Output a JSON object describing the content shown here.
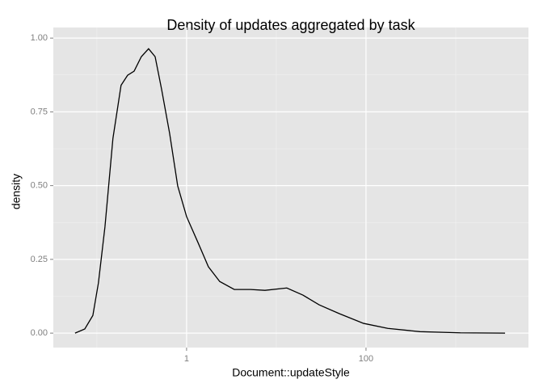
{
  "chart_data": {
    "type": "line",
    "title": "Density of updates aggregated by task",
    "x_label": "Document::updateStyle",
    "y_label": "density",
    "x_log": true,
    "grid": true,
    "x": [
      0.0571,
      0.0733,
      0.0902,
      0.104,
      0.123,
      0.151,
      0.186,
      0.22,
      0.26,
      0.313,
      0.377,
      0.446,
      0.526,
      0.647,
      0.796,
      1,
      1.34,
      1.75,
      2.34,
      3.4,
      5.15,
      7.48,
      13.1,
      19.8,
      30,
      50.4,
      94,
      175,
      400,
      1130,
      3550
    ],
    "series": [
      {
        "color": "#000000",
        "values": [
          0,
          0.014,
          0.06,
          0.17,
          0.36,
          0.66,
          0.84,
          0.874,
          0.888,
          0.937,
          0.964,
          0.937,
          0.827,
          0.677,
          0.499,
          0.395,
          0.307,
          0.225,
          0.175,
          0.148,
          0.148,
          0.145,
          0.153,
          0.129,
          0.096,
          0.066,
          0.033,
          0.016,
          0.005,
          0.001,
          0
        ]
      }
    ],
    "xlim": [
      0.0327,
      6470
    ],
    "ylim": [
      -0.049,
      1.036
    ],
    "xticks": [
      1,
      100
    ],
    "x_minor_ticks": [
      0.1,
      10,
      1000
    ],
    "yticks": [
      {
        "value": 0,
        "label": "0.00"
      },
      {
        "value": 0.25,
        "label": "0.25"
      },
      {
        "value": 0.5,
        "label": "0.50"
      },
      {
        "value": 0.75,
        "label": "0.75"
      },
      {
        "value": 1,
        "label": "1.00"
      }
    ],
    "y_minor_ticks": [
      0.125,
      0.375,
      0.625,
      0.875
    ]
  }
}
